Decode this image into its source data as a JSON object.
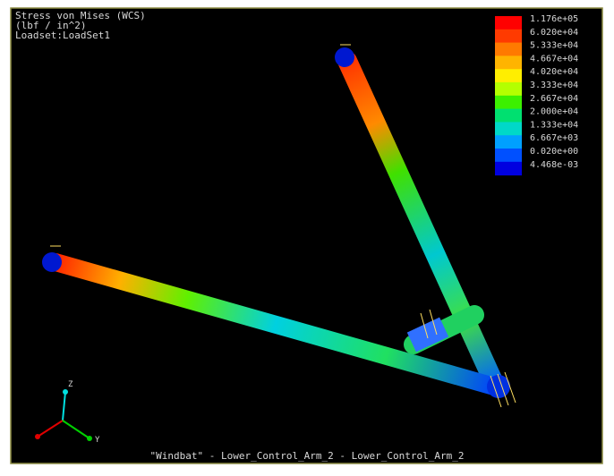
{
  "header": {
    "lines": [
      "Stress von Mises (WCS)",
      "(lbf / in^2)",
      "Loadset:LoadSet1"
    ]
  },
  "legend": {
    "entries": [
      {
        "label": "1.176e+05",
        "color": "#ff0000"
      },
      {
        "label": "6.020e+04",
        "color": "#ff3a00"
      },
      {
        "label": "5.333e+04",
        "color": "#ff7a00"
      },
      {
        "label": "4.667e+04",
        "color": "#ffb400"
      },
      {
        "label": "4.020e+04",
        "color": "#ffee00"
      },
      {
        "label": "3.333e+04",
        "color": "#b4ff00"
      },
      {
        "label": "2.667e+04",
        "color": "#3cf000"
      },
      {
        "label": "2.000e+04",
        "color": "#00e070"
      },
      {
        "label": "1.333e+04",
        "color": "#00d8c8"
      },
      {
        "label": "6.667e+03",
        "color": "#00a0ff"
      },
      {
        "label": "0.020e+00",
        "color": "#0050ff"
      },
      {
        "label": "4.468e-03",
        "color": "#0000e0"
      }
    ]
  },
  "triad": {
    "labels": [
      "Z",
      "Y"
    ]
  },
  "footer": {
    "text": "\"Windbat\" - Lower_Control_Arm_2 - Lower_Control_Arm_2"
  }
}
